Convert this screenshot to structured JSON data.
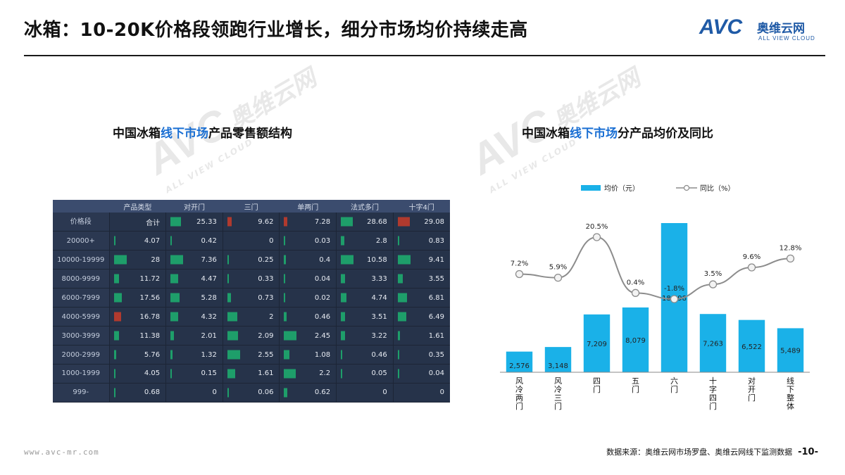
{
  "header": {
    "title": "冰箱：10-20K价格段领跑行业增长，细分市场均价持续走高"
  },
  "logo": {
    "mark": "AVC",
    "cn": "奥维云网",
    "en": "ALL VIEW CLOUD"
  },
  "watermark": {
    "mark": "AVC",
    "cn": "奥维云网",
    "en": "ALL VIEW CLOUD"
  },
  "left_title": {
    "p1": "中国冰箱",
    "p2": "线下市场",
    "p3": "产品零售额结构"
  },
  "right_title": {
    "p1": "中国冰箱",
    "p2": "线下市场",
    "p3": "分产品均价及同比"
  },
  "colors": {
    "blue": "#1ab1e8",
    "line": "#8c8c8c",
    "bar_green": "#1e9e6a",
    "bar_red": "#b03a2e"
  },
  "chart_data": [
    {
      "type": "table",
      "header": [
        "产品类型",
        "对开门",
        "三门",
        "单两门",
        "法式多门",
        "十字4门"
      ],
      "rows": [
        {
          "label": "价格段",
          "values": [
            "合计",
            "25.33",
            "9.62",
            "7.28",
            "28.68",
            "29.08"
          ]
        },
        {
          "label": "20000+",
          "values": [
            "4.07",
            "0.42",
            "0",
            "0.03",
            "2.8",
            "0.83"
          ]
        },
        {
          "label": "10000-19999",
          "values": [
            "28",
            "7.36",
            "0.25",
            "0.4",
            "10.58",
            "9.41"
          ]
        },
        {
          "label": "8000-9999",
          "values": [
            "11.72",
            "4.47",
            "0.33",
            "0.04",
            "3.33",
            "3.55"
          ]
        },
        {
          "label": "6000-7999",
          "values": [
            "17.56",
            "5.28",
            "0.73",
            "0.02",
            "4.74",
            "6.81"
          ]
        },
        {
          "label": "4000-5999",
          "values": [
            "16.78",
            "4.32",
            "2",
            "0.46",
            "3.51",
            "6.49"
          ]
        },
        {
          "label": "3000-3999",
          "values": [
            "11.38",
            "2.01",
            "2.09",
            "2.45",
            "3.22",
            "1.61"
          ]
        },
        {
          "label": "2000-2999",
          "values": [
            "5.76",
            "1.32",
            "2.55",
            "1.08",
            "0.46",
            "0.35"
          ]
        },
        {
          "label": "1000-1999",
          "values": [
            "4.05",
            "0.15",
            "1.61",
            "2.2",
            "0.05",
            "0.04"
          ]
        },
        {
          "label": "999-",
          "values": [
            "0.68",
            "0",
            "0.06",
            "0.62",
            "0",
            "0"
          ]
        }
      ]
    },
    {
      "type": "bar",
      "categories": [
        "风冷两门",
        "风冷三门",
        "四门",
        "五门",
        "六门",
        "十字四门",
        "对开门",
        "线下整体"
      ],
      "series": [
        {
          "name": "均价（元）",
          "type": "bar",
          "values": [
            2576,
            3148,
            7209,
            8079,
            18598,
            7263,
            6522,
            5489
          ],
          "labels": [
            "2,576",
            "3,148",
            "7,209",
            "8,079",
            "18,598",
            "7,263",
            "6,522",
            "5,489"
          ]
        },
        {
          "name": "同比（%）",
          "type": "line",
          "values": [
            7.2,
            5.9,
            20.5,
            0.4,
            -1.8,
            3.5,
            9.6,
            12.8
          ],
          "labels": [
            "7.2%",
            "5.9%",
            "20.5%",
            "0.4%",
            "-1.8%",
            "3.5%",
            "9.6%",
            "12.8%"
          ]
        }
      ],
      "legend": "top"
    }
  ],
  "footer": {
    "url": "www.avc-mr.com",
    "source": "数据来源：奥维云网市场罗盘、奥维云网线下监测数据",
    "page": "-10-"
  }
}
